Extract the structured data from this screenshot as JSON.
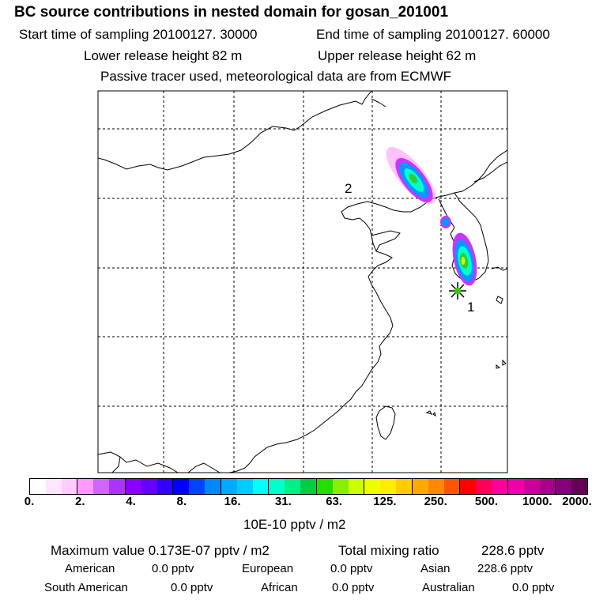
{
  "header": {
    "title": "BC  source contributions in nested domain for gosan_201001",
    "start_label": "Start time of sampling 20100127. 30000",
    "end_label": "End time of sampling 20100127. 60000",
    "lower_label": "Lower release height   82 m",
    "upper_label": "Upper release height   62 m",
    "note": "Passive tracer used, meteorological data are from ECMWF"
  },
  "map": {
    "markers": [
      {
        "id": "1",
        "label": "1"
      },
      {
        "id": "2",
        "label": "2"
      }
    ],
    "plume_colors": {
      "low": "#ff99ff",
      "mid": "#9900ff",
      "high1": "#0099ff",
      "high2": "#00ffcc",
      "peak": "#33cc33",
      "peak2": "#ccff00"
    }
  },
  "colorbar": {
    "colors": [
      "#ffffff",
      "#ffe6ff",
      "#ffccff",
      "#ff99ff",
      "#cc66ff",
      "#aa33ff",
      "#8800ff",
      "#6600ff",
      "#3300ff",
      "#0000ff",
      "#0044ff",
      "#0088ff",
      "#00aaff",
      "#00ccff",
      "#00ffff",
      "#00ffcc",
      "#00ee88",
      "#00cc44",
      "#22dd00",
      "#88ee00",
      "#ccff00",
      "#eeff00",
      "#ffee00",
      "#ffcc00",
      "#ffaa00",
      "#ff8800",
      "#ff5500",
      "#ff0000",
      "#ff0055",
      "#ff0099",
      "#ee00aa",
      "#cc0099",
      "#aa0088",
      "#880077",
      "#660055"
    ],
    "tick_labels": [
      "0.",
      "2.",
      "4.",
      "8.",
      "16.",
      "31.",
      "63.",
      "125.",
      "250.",
      "500.",
      "1000.",
      "2000."
    ],
    "units": "10E-10 pptv / m2"
  },
  "footer": {
    "max_label": "Maximum value  0.173E-07 pptv / m2",
    "total_label": "Total mixing ratio",
    "total_value": "228.6 pptv",
    "american_label": "American",
    "american_value": "0.0 pptv",
    "european_label": "European",
    "european_value": "0.0 pptv",
    "asian_label": "Asian",
    "asian_value": "228.6 pptv",
    "south_american_label": "South American",
    "south_american_value": "0.0 pptv",
    "african_label": "African",
    "african_value": "0.0 pptv",
    "australian_label": "Australian",
    "australian_value": "0.0 pptv"
  }
}
